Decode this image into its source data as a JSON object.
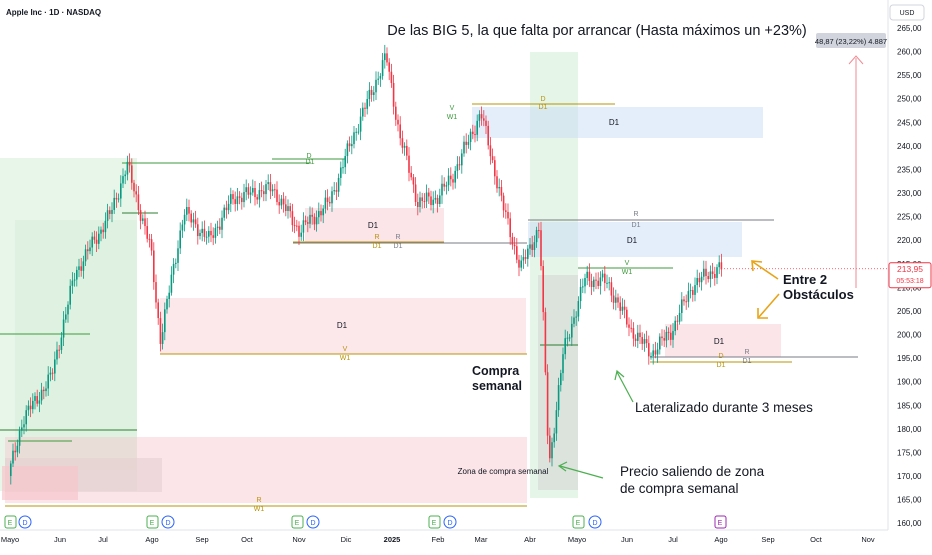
{
  "header": {
    "symbol_title": "Apple Inc · 1D · NASDAQ",
    "currency": "USD",
    "headline": "De las BIG 5, la que falta por arrancar (Hasta máximos un +23%)"
  },
  "price_badge": {
    "price": "213,95",
    "countdown": "05:53:18"
  },
  "measure_label": "48,87 (23,22%) 4.887",
  "chart_data": {
    "type": "candlestick",
    "title": "De las BIG 5, la que falta por arrancar (Hasta máximos un +23%)",
    "ylim": [
      160,
      265
    ],
    "y_ticks": [
      "265,00",
      "260,00",
      "255,00",
      "250,00",
      "245,00",
      "240,00",
      "235,00",
      "230,00",
      "225,00",
      "220,00",
      "215,00",
      "210,00",
      "205,00",
      "200,00",
      "195,00",
      "190,00",
      "185,00",
      "180,00",
      "175,00",
      "170,00",
      "165,00",
      "160,00"
    ],
    "x_ticks": [
      "Mayo",
      "Jun",
      "Jul",
      "Ago",
      "Sep",
      "Oct",
      "Nov",
      "Dic",
      "2025",
      "Feb",
      "Mar",
      "Abr",
      "Mayo",
      "Jun",
      "Jul",
      "Ago",
      "Sep",
      "Oct",
      "Nov"
    ],
    "price_path": [
      {
        "x": "2024-05-01",
        "y": 170
      },
      {
        "x": "2024-05-10",
        "y": 182
      },
      {
        "x": "2024-05-28",
        "y": 191
      },
      {
        "x": "2024-06-12",
        "y": 213
      },
      {
        "x": "2024-07-05",
        "y": 226
      },
      {
        "x": "2024-07-15",
        "y": 236
      },
      {
        "x": "2024-07-30",
        "y": 218
      },
      {
        "x": "2024-08-05",
        "y": 199
      },
      {
        "x": "2024-08-20",
        "y": 226
      },
      {
        "x": "2024-09-05",
        "y": 220
      },
      {
        "x": "2024-09-20",
        "y": 229
      },
      {
        "x": "2024-10-15",
        "y": 231
      },
      {
        "x": "2024-11-01",
        "y": 222
      },
      {
        "x": "2024-11-20",
        "y": 228
      },
      {
        "x": "2024-12-05",
        "y": 242
      },
      {
        "x": "2024-12-26",
        "y": 259
      },
      {
        "x": "2025-01-03",
        "y": 243
      },
      {
        "x": "2025-01-15",
        "y": 228
      },
      {
        "x": "2025-01-27",
        "y": 229
      },
      {
        "x": "2025-02-05",
        "y": 233
      },
      {
        "x": "2025-02-24",
        "y": 247
      },
      {
        "x": "2025-03-10",
        "y": 227
      },
      {
        "x": "2025-03-21",
        "y": 214
      },
      {
        "x": "2025-04-02",
        "y": 223
      },
      {
        "x": "2025-04-08",
        "y": 172
      },
      {
        "x": "2025-04-17",
        "y": 196
      },
      {
        "x": "2025-05-01",
        "y": 212
      },
      {
        "x": "2025-05-15",
        "y": 211
      },
      {
        "x": "2025-05-30",
        "y": 201
      },
      {
        "x": "2025-06-12",
        "y": 196
      },
      {
        "x": "2025-06-25",
        "y": 201
      },
      {
        "x": "2025-07-07",
        "y": 210
      },
      {
        "x": "2025-07-18",
        "y": 213
      },
      {
        "x": "2025-07-25",
        "y": 214
      }
    ],
    "last_price": 213.95,
    "zones": [
      {
        "label": "D1",
        "color": "pink",
        "y": [
          224.5,
          228
        ]
      },
      {
        "label": "D1",
        "color": "blue",
        "y": [
          242,
          248.5
        ]
      },
      {
        "label": "D1",
        "color": "blue",
        "y": [
          217,
          224.5
        ]
      },
      {
        "label": "D1",
        "color": "pink",
        "y": [
          197,
          208.5
        ]
      },
      {
        "label": "D1",
        "color": "pink",
        "y": [
          196,
          202.5
        ]
      },
      {
        "label": "Zona de compra semanal",
        "color": "pink",
        "y": [
          165,
          179.5
        ]
      }
    ],
    "level_tags": [
      "D",
      "D1",
      "R",
      "D1",
      "R",
      "D1",
      "V",
      "W1",
      "D",
      "D1",
      "R",
      "D1",
      "V",
      "W1",
      "D",
      "D1",
      "R",
      "D1",
      "V",
      "W1",
      "R",
      "W1"
    ]
  },
  "annotations": {
    "compra_semanal": "Compra\nsemanal",
    "lateralizado": "Lateralizado durante 3 meses",
    "precio_saliendo": "Precio saliendo de zona\nde compra semanal",
    "entre_obstaculos": "Entre 2\nObstáculos"
  },
  "colors": {
    "up": "#089981",
    "down": "#f23645",
    "zone_pink": "#f7c6cc",
    "zone_blue": "#c9dcf5",
    "zone_green": "#d4eed7",
    "zone_gray": "#d6d6d6",
    "level_gold": "#b8930a",
    "level_green": "#3c9a3c",
    "arrow": "#e8a317",
    "text_arrow": "#4caf50"
  }
}
